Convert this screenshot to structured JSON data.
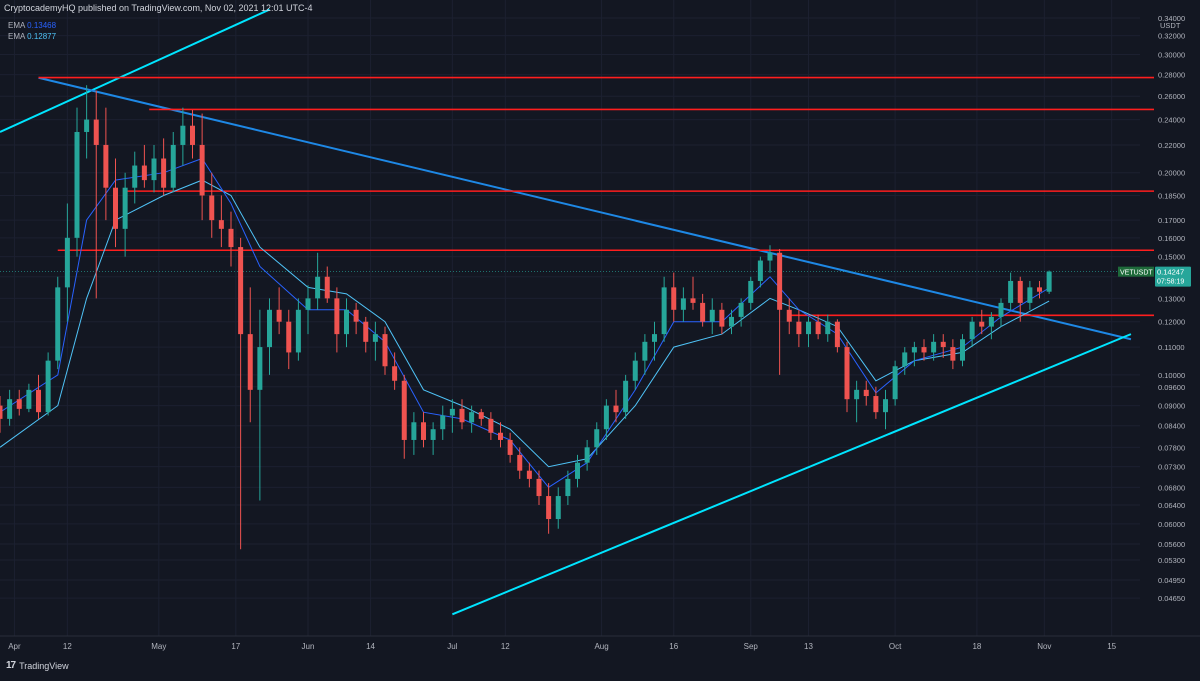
{
  "header": {
    "publisher": "CryptocademyHQ published on TradingView.com, Nov 02, 2021 12:01 UTC-4"
  },
  "legend": [
    {
      "name": "EMA",
      "value": "0.13468",
      "color": "#2962ff"
    },
    {
      "name": "EMA",
      "value": "0.12877",
      "color": "#4fc3f7"
    }
  ],
  "brand": {
    "label": "TradingView",
    "logo": "tradingview-logo"
  },
  "chart_data": {
    "type": "candlestick",
    "symbol": "VETUSDT",
    "currency": "USDT",
    "last_price": "0.14247",
    "countdown": "07:58:19",
    "y_scale": "log",
    "ylim": [
      0.043,
      0.34
    ],
    "y_ticks": [
      "0.34000",
      "0.32000",
      "0.30000",
      "0.28000",
      "0.26000",
      "0.24000",
      "0.22000",
      "0.20000",
      "0.18500",
      "0.17000",
      "0.16000",
      "0.15000",
      "0.14000",
      "0.13000",
      "0.12000",
      "0.11000",
      "0.10000",
      "0.09600",
      "0.09000",
      "0.08400",
      "0.07800",
      "0.07300",
      "0.06800",
      "0.06400",
      "0.06000",
      "0.05600",
      "0.05300",
      "0.04950",
      "0.04650"
    ],
    "x_ticks": [
      {
        "label": "Apr",
        "date": "2021-04-01"
      },
      {
        "label": "12",
        "date": "2021-04-12"
      },
      {
        "label": "May",
        "date": "2021-05-01"
      },
      {
        "label": "17",
        "date": "2021-05-17"
      },
      {
        "label": "Jun",
        "date": "2021-06-01"
      },
      {
        "label": "14",
        "date": "2021-06-14"
      },
      {
        "label": "Jul",
        "date": "2021-07-01"
      },
      {
        "label": "12",
        "date": "2021-07-12"
      },
      {
        "label": "Aug",
        "date": "2021-08-01"
      },
      {
        "label": "16",
        "date": "2021-08-16"
      },
      {
        "label": "Sep",
        "date": "2021-09-01"
      },
      {
        "label": "13",
        "date": "2021-09-13"
      },
      {
        "label": "Oct",
        "date": "2021-10-01"
      },
      {
        "label": "18",
        "date": "2021-10-18"
      },
      {
        "label": "Nov",
        "date": "2021-11-01"
      },
      {
        "label": "15",
        "date": "2021-11-15"
      }
    ],
    "xlim": [
      "2021-03-29",
      "2021-11-24"
    ],
    "colors": {
      "up": "#26a69a",
      "down": "#ef5350",
      "ema_fast": "#2962ff",
      "ema_slow": "#4fc3f7",
      "level": "#ff1e1e",
      "trend_up": "#00e5ff",
      "trend_down": "#1e88e5"
    },
    "ohlc": [
      [
        "2021-03-29",
        0.09,
        0.093,
        0.082,
        0.086
      ],
      [
        "2021-03-31",
        0.086,
        0.095,
        0.084,
        0.092
      ],
      [
        "2021-04-02",
        0.092,
        0.095,
        0.087,
        0.089
      ],
      [
        "2021-04-04",
        0.089,
        0.097,
        0.088,
        0.095
      ],
      [
        "2021-04-06",
        0.095,
        0.1,
        0.086,
        0.088
      ],
      [
        "2021-04-08",
        0.088,
        0.108,
        0.087,
        0.105
      ],
      [
        "2021-04-10",
        0.105,
        0.14,
        0.102,
        0.135
      ],
      [
        "2021-04-12",
        0.135,
        0.18,
        0.12,
        0.16
      ],
      [
        "2021-04-14",
        0.16,
        0.25,
        0.15,
        0.23
      ],
      [
        "2021-04-16",
        0.23,
        0.27,
        0.21,
        0.24
      ],
      [
        "2021-04-18",
        0.24,
        0.265,
        0.13,
        0.22
      ],
      [
        "2021-04-20",
        0.22,
        0.25,
        0.17,
        0.19
      ],
      [
        "2021-04-22",
        0.19,
        0.21,
        0.155,
        0.165
      ],
      [
        "2021-04-24",
        0.165,
        0.2,
        0.15,
        0.19
      ],
      [
        "2021-04-26",
        0.19,
        0.215,
        0.18,
        0.205
      ],
      [
        "2021-04-28",
        0.205,
        0.22,
        0.19,
        0.195
      ],
      [
        "2021-04-30",
        0.195,
        0.22,
        0.187,
        0.21
      ],
      [
        "2021-05-02",
        0.21,
        0.225,
        0.185,
        0.19
      ],
      [
        "2021-05-04",
        0.19,
        0.23,
        0.187,
        0.22
      ],
      [
        "2021-05-06",
        0.22,
        0.25,
        0.205,
        0.235
      ],
      [
        "2021-05-08",
        0.235,
        0.248,
        0.21,
        0.22
      ],
      [
        "2021-05-10",
        0.22,
        0.245,
        0.17,
        0.185
      ],
      [
        "2021-05-12",
        0.185,
        0.2,
        0.16,
        0.17
      ],
      [
        "2021-05-14",
        0.17,
        0.185,
        0.155,
        0.165
      ],
      [
        "2021-05-16",
        0.165,
        0.175,
        0.145,
        0.155
      ],
      [
        "2021-05-18",
        0.155,
        0.16,
        0.055,
        0.115
      ],
      [
        "2021-05-20",
        0.115,
        0.135,
        0.085,
        0.095
      ],
      [
        "2021-05-22",
        0.095,
        0.125,
        0.065,
        0.11
      ],
      [
        "2021-05-24",
        0.11,
        0.13,
        0.1,
        0.125
      ],
      [
        "2021-05-26",
        0.125,
        0.135,
        0.115,
        0.12
      ],
      [
        "2021-05-28",
        0.12,
        0.125,
        0.102,
        0.108
      ],
      [
        "2021-05-30",
        0.108,
        0.13,
        0.105,
        0.125
      ],
      [
        "2021-06-01",
        0.125,
        0.136,
        0.115,
        0.13
      ],
      [
        "2021-06-03",
        0.13,
        0.152,
        0.125,
        0.14
      ],
      [
        "2021-06-05",
        0.14,
        0.145,
        0.128,
        0.13
      ],
      [
        "2021-06-07",
        0.13,
        0.135,
        0.108,
        0.115
      ],
      [
        "2021-06-09",
        0.115,
        0.13,
        0.11,
        0.125
      ],
      [
        "2021-06-11",
        0.125,
        0.128,
        0.115,
        0.12
      ],
      [
        "2021-06-13",
        0.12,
        0.122,
        0.108,
        0.112
      ],
      [
        "2021-06-15",
        0.112,
        0.12,
        0.105,
        0.115
      ],
      [
        "2021-06-17",
        0.115,
        0.118,
        0.1,
        0.103
      ],
      [
        "2021-06-19",
        0.103,
        0.108,
        0.095,
        0.098
      ],
      [
        "2021-06-21",
        0.098,
        0.1,
        0.075,
        0.08
      ],
      [
        "2021-06-23",
        0.08,
        0.088,
        0.076,
        0.085
      ],
      [
        "2021-06-25",
        0.085,
        0.088,
        0.078,
        0.08
      ],
      [
        "2021-06-27",
        0.08,
        0.085,
        0.076,
        0.083
      ],
      [
        "2021-06-29",
        0.083,
        0.09,
        0.08,
        0.087
      ],
      [
        "2021-07-01",
        0.087,
        0.092,
        0.082,
        0.089
      ],
      [
        "2021-07-03",
        0.089,
        0.092,
        0.083,
        0.085
      ],
      [
        "2021-07-05",
        0.085,
        0.09,
        0.082,
        0.088
      ],
      [
        "2021-07-07",
        0.088,
        0.089,
        0.084,
        0.086
      ],
      [
        "2021-07-09",
        0.086,
        0.088,
        0.08,
        0.082
      ],
      [
        "2021-07-11",
        0.082,
        0.085,
        0.078,
        0.08
      ],
      [
        "2021-07-13",
        0.08,
        0.082,
        0.074,
        0.076
      ],
      [
        "2021-07-15",
        0.076,
        0.078,
        0.07,
        0.072
      ],
      [
        "2021-07-17",
        0.072,
        0.074,
        0.068,
        0.07
      ],
      [
        "2021-07-19",
        0.07,
        0.072,
        0.064,
        0.066
      ],
      [
        "2021-07-21",
        0.066,
        0.069,
        0.058,
        0.061
      ],
      [
        "2021-07-23",
        0.061,
        0.068,
        0.059,
        0.066
      ],
      [
        "2021-07-25",
        0.066,
        0.072,
        0.064,
        0.07
      ],
      [
        "2021-07-27",
        0.07,
        0.076,
        0.068,
        0.074
      ],
      [
        "2021-07-29",
        0.074,
        0.08,
        0.072,
        0.078
      ],
      [
        "2021-07-31",
        0.078,
        0.085,
        0.076,
        0.083
      ],
      [
        "2021-08-02",
        0.083,
        0.092,
        0.08,
        0.09
      ],
      [
        "2021-08-04",
        0.09,
        0.095,
        0.085,
        0.088
      ],
      [
        "2021-08-06",
        0.088,
        0.1,
        0.086,
        0.098
      ],
      [
        "2021-08-08",
        0.098,
        0.108,
        0.095,
        0.105
      ],
      [
        "2021-08-10",
        0.105,
        0.115,
        0.1,
        0.112
      ],
      [
        "2021-08-12",
        0.112,
        0.12,
        0.105,
        0.115
      ],
      [
        "2021-08-14",
        0.115,
        0.14,
        0.112,
        0.135
      ],
      [
        "2021-08-16",
        0.135,
        0.142,
        0.12,
        0.125
      ],
      [
        "2021-08-18",
        0.125,
        0.135,
        0.12,
        0.13
      ],
      [
        "2021-08-20",
        0.13,
        0.14,
        0.125,
        0.128
      ],
      [
        "2021-08-22",
        0.128,
        0.132,
        0.118,
        0.12
      ],
      [
        "2021-08-24",
        0.12,
        0.13,
        0.115,
        0.125
      ],
      [
        "2021-08-26",
        0.125,
        0.128,
        0.115,
        0.118
      ],
      [
        "2021-08-28",
        0.118,
        0.125,
        0.115,
        0.122
      ],
      [
        "2021-08-30",
        0.122,
        0.13,
        0.118,
        0.128
      ],
      [
        "2021-09-01",
        0.128,
        0.14,
        0.125,
        0.138
      ],
      [
        "2021-09-03",
        0.138,
        0.15,
        0.135,
        0.148
      ],
      [
        "2021-09-05",
        0.148,
        0.156,
        0.142,
        0.152
      ],
      [
        "2021-09-07",
        0.152,
        0.154,
        0.1,
        0.125
      ],
      [
        "2021-09-09",
        0.125,
        0.13,
        0.115,
        0.12
      ],
      [
        "2021-09-11",
        0.12,
        0.125,
        0.11,
        0.115
      ],
      [
        "2021-09-13",
        0.115,
        0.122,
        0.11,
        0.12
      ],
      [
        "2021-09-15",
        0.12,
        0.123,
        0.113,
        0.115
      ],
      [
        "2021-09-17",
        0.115,
        0.123,
        0.112,
        0.12
      ],
      [
        "2021-09-19",
        0.12,
        0.121,
        0.108,
        0.11
      ],
      [
        "2021-09-21",
        0.11,
        0.112,
        0.088,
        0.092
      ],
      [
        "2021-09-23",
        0.092,
        0.098,
        0.085,
        0.095
      ],
      [
        "2021-09-25",
        0.095,
        0.098,
        0.09,
        0.093
      ],
      [
        "2021-09-27",
        0.093,
        0.096,
        0.086,
        0.088
      ],
      [
        "2021-09-29",
        0.088,
        0.095,
        0.083,
        0.092
      ],
      [
        "2021-10-01",
        0.092,
        0.105,
        0.09,
        0.103
      ],
      [
        "2021-10-03",
        0.103,
        0.11,
        0.1,
        0.108
      ],
      [
        "2021-10-05",
        0.108,
        0.112,
        0.103,
        0.11
      ],
      [
        "2021-10-07",
        0.11,
        0.113,
        0.105,
        0.108
      ],
      [
        "2021-10-09",
        0.108,
        0.115,
        0.105,
        0.112
      ],
      [
        "2021-10-11",
        0.112,
        0.115,
        0.106,
        0.11
      ],
      [
        "2021-10-13",
        0.11,
        0.113,
        0.102,
        0.105
      ],
      [
        "2021-10-15",
        0.105,
        0.115,
        0.103,
        0.113
      ],
      [
        "2021-10-17",
        0.113,
        0.122,
        0.11,
        0.12
      ],
      [
        "2021-10-19",
        0.12,
        0.125,
        0.115,
        0.118
      ],
      [
        "2021-10-21",
        0.118,
        0.124,
        0.113,
        0.122
      ],
      [
        "2021-10-23",
        0.122,
        0.13,
        0.118,
        0.128
      ],
      [
        "2021-10-25",
        0.128,
        0.142,
        0.125,
        0.138
      ],
      [
        "2021-10-27",
        0.138,
        0.14,
        0.12,
        0.128
      ],
      [
        "2021-10-29",
        0.128,
        0.138,
        0.125,
        0.135
      ],
      [
        "2021-10-31",
        0.135,
        0.138,
        0.13,
        0.133
      ],
      [
        "2021-11-02",
        0.133,
        0.143,
        0.132,
        0.1425
      ]
    ],
    "ema_fast": [
      [
        "2021-03-29",
        0.088
      ],
      [
        "2021-04-10",
        0.1
      ],
      [
        "2021-04-16",
        0.17
      ],
      [
        "2021-04-22",
        0.195
      ],
      [
        "2021-05-02",
        0.2
      ],
      [
        "2021-05-10",
        0.21
      ],
      [
        "2021-05-16",
        0.18
      ],
      [
        "2021-05-22",
        0.145
      ],
      [
        "2021-06-01",
        0.125
      ],
      [
        "2021-06-09",
        0.125
      ],
      [
        "2021-06-17",
        0.112
      ],
      [
        "2021-06-25",
        0.088
      ],
      [
        "2021-07-03",
        0.086
      ],
      [
        "2021-07-13",
        0.08
      ],
      [
        "2021-07-21",
        0.068
      ],
      [
        "2021-07-29",
        0.074
      ],
      [
        "2021-08-08",
        0.095
      ],
      [
        "2021-08-16",
        0.12
      ],
      [
        "2021-08-26",
        0.12
      ],
      [
        "2021-09-05",
        0.14
      ],
      [
        "2021-09-11",
        0.125
      ],
      [
        "2021-09-19",
        0.115
      ],
      [
        "2021-09-27",
        0.094
      ],
      [
        "2021-10-05",
        0.105
      ],
      [
        "2021-10-15",
        0.11
      ],
      [
        "2021-10-23",
        0.122
      ],
      [
        "2021-11-02",
        0.1347
      ]
    ],
    "ema_slow": [
      [
        "2021-03-29",
        0.078
      ],
      [
        "2021-04-10",
        0.09
      ],
      [
        "2021-04-16",
        0.13
      ],
      [
        "2021-04-22",
        0.17
      ],
      [
        "2021-05-02",
        0.185
      ],
      [
        "2021-05-10",
        0.195
      ],
      [
        "2021-05-16",
        0.185
      ],
      [
        "2021-05-22",
        0.155
      ],
      [
        "2021-06-01",
        0.135
      ],
      [
        "2021-06-09",
        0.132
      ],
      [
        "2021-06-17",
        0.12
      ],
      [
        "2021-06-25",
        0.095
      ],
      [
        "2021-07-03",
        0.09
      ],
      [
        "2021-07-13",
        0.083
      ],
      [
        "2021-07-21",
        0.073
      ],
      [
        "2021-07-29",
        0.075
      ],
      [
        "2021-08-08",
        0.09
      ],
      [
        "2021-08-16",
        0.11
      ],
      [
        "2021-08-26",
        0.115
      ],
      [
        "2021-09-05",
        0.13
      ],
      [
        "2021-09-11",
        0.125
      ],
      [
        "2021-09-19",
        0.118
      ],
      [
        "2021-09-27",
        0.098
      ],
      [
        "2021-10-05",
        0.105
      ],
      [
        "2021-10-15",
        0.108
      ],
      [
        "2021-10-23",
        0.118
      ],
      [
        "2021-11-02",
        0.1288
      ]
    ],
    "levels": [
      {
        "price": 0.27721,
        "label": "0.27721",
        "from": "2021-04-06"
      },
      {
        "price": 0.24852,
        "label": "0.24852",
        "from": "2021-04-29"
      },
      {
        "price": 0.18778,
        "label": "0.18778",
        "from": "2021-04-24"
      },
      {
        "price": 0.15332,
        "label": "0.15332",
        "from": "2021-04-10"
      },
      {
        "price": 0.12268,
        "label": "0.12268",
        "from": "2021-09-09"
      }
    ],
    "trendlines": [
      {
        "name": "ascending-resistance",
        "from": [
          "2021-03-29",
          0.23
        ],
        "to": [
          "2021-05-24",
          0.35
        ],
        "color": "#00e5ff"
      },
      {
        "name": "descending-trendline",
        "from": [
          "2021-04-06",
          0.277
        ],
        "to": [
          "2021-11-19",
          0.113
        ],
        "color": "#1e88e5"
      },
      {
        "name": "ascending-support",
        "from": [
          "2021-07-01",
          0.044
        ],
        "to": [
          "2021-11-19",
          0.115
        ],
        "color": "#00e5ff"
      }
    ]
  }
}
